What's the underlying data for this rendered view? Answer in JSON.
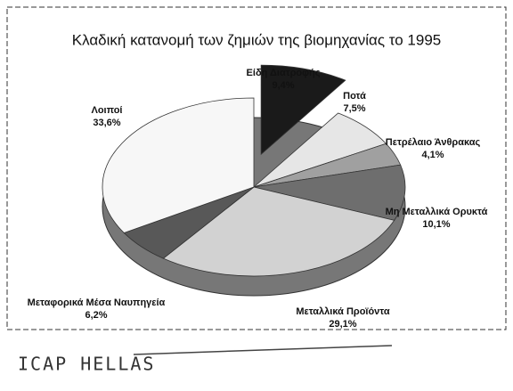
{
  "chart_data": {
    "type": "pie",
    "title": "Κλαδική κατανομή των ζημιών της βιομηχανίας το 1995",
    "categories": [
      "Είδη Διατροφής",
      "Ποτά",
      "Πετρέλαιο Άνθρακας",
      "Μη Μεταλλικά Ορυκτά",
      "Μεταλλικά Προϊόντα",
      "Μεταφορικά Μέσα Ναυπηγεία",
      "Λοιποί"
    ],
    "values": [
      9.4,
      7.5,
      4.1,
      10.1,
      29.1,
      6.2,
      33.6
    ],
    "value_labels": [
      "9,4%",
      "7,5%",
      "4,1%",
      "10,1%",
      "29,1%",
      "6,2%",
      "33,6%"
    ],
    "colors": [
      "#1a1a1a",
      "#e6e6e6",
      "#a0a0a0",
      "#6e6e6e",
      "#d2d2d2",
      "#585858",
      "#f7f7f7"
    ],
    "source": "ICAP HELLAS"
  }
}
